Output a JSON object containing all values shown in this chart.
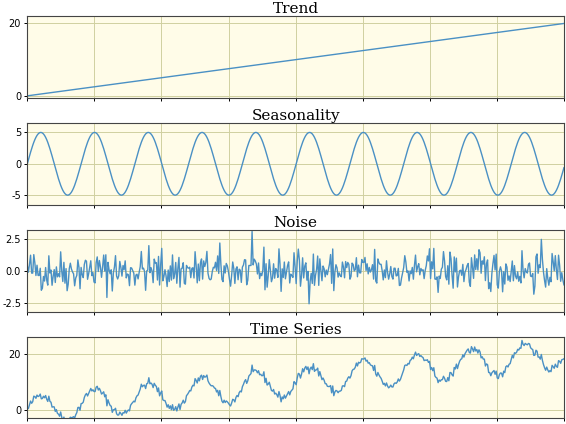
{
  "n_points": 500,
  "trend_slope": 0.04,
  "seasonality_amplitude": 5,
  "seasonality_period": 50,
  "noise_std": 0.8,
  "titles": [
    "Trend",
    "Seasonality",
    "Noise",
    "Time Series"
  ],
  "line_color": "#4a90c4",
  "bg_color": "#fffce8",
  "line_width": 1.0,
  "title_fontsize": 11,
  "ylim_trend": [
    -0.5,
    22
  ],
  "ylim_seasonality": [
    -6.5,
    6.5
  ],
  "ylim_noise": [
    -3.2,
    3.2
  ],
  "ylim_timeseries": [
    -3,
    26
  ],
  "yticks_trend": [
    0,
    20
  ],
  "yticks_seasonality": [
    -5,
    0,
    5
  ],
  "yticks_noise": [
    -2.5,
    0.0,
    2.5
  ],
  "yticks_timeseries": [
    0,
    20
  ],
  "grid_color": "#d0d0a0",
  "figure_bg": "#ffffff",
  "spine_color": "#444444",
  "n_xgrid": 8
}
